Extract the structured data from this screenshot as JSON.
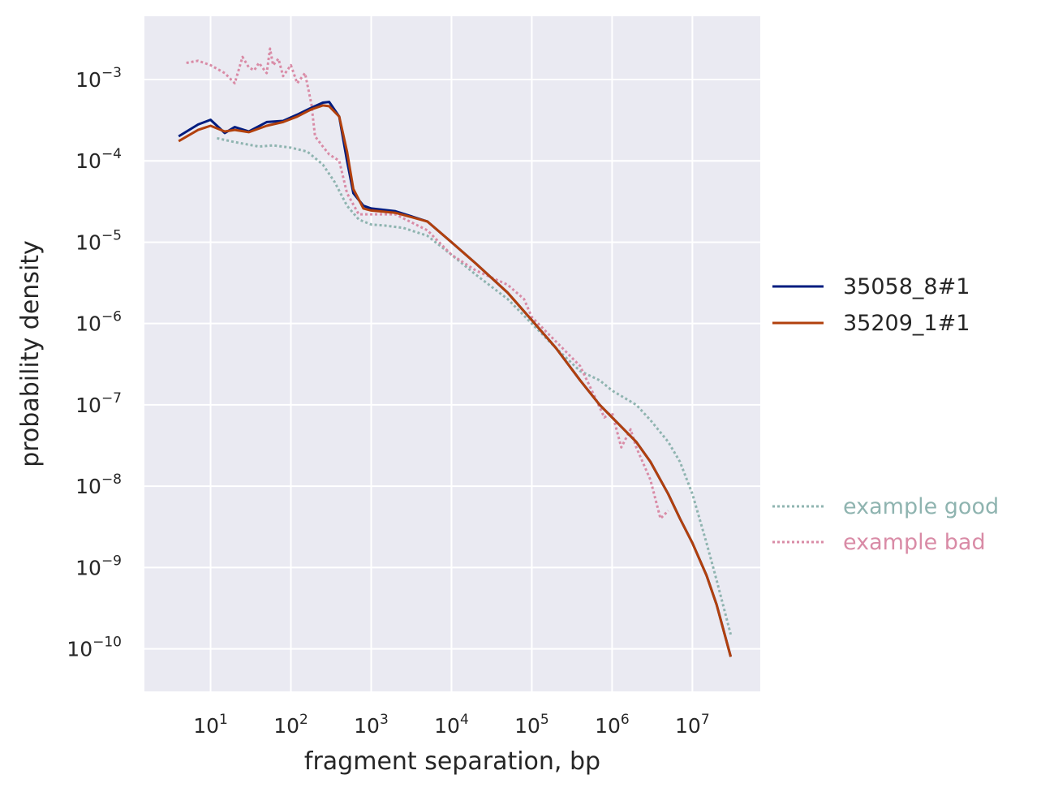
{
  "chart_data": {
    "type": "line",
    "title": "",
    "xlabel": "fragment separation, bp",
    "ylabel": "probability density",
    "xscale": "log",
    "yscale": "log",
    "xlim": [
      1.5,
      70000000
    ],
    "ylim": [
      3e-11,
      0.006
    ],
    "grid": true,
    "background": "#eaeaf2",
    "x_ticks": [
      {
        "base": "10",
        "exp": "1",
        "value": 10
      },
      {
        "base": "10",
        "exp": "2",
        "value": 100
      },
      {
        "base": "10",
        "exp": "3",
        "value": 1000
      },
      {
        "base": "10",
        "exp": "4",
        "value": 10000
      },
      {
        "base": "10",
        "exp": "5",
        "value": 100000
      },
      {
        "base": "10",
        "exp": "6",
        "value": 1000000
      },
      {
        "base": "10",
        "exp": "7",
        "value": 10000000
      }
    ],
    "y_ticks": [
      {
        "base": "10",
        "exp": "−3",
        "value": 0.001
      },
      {
        "base": "10",
        "exp": "−4",
        "value": 0.0001
      },
      {
        "base": "10",
        "exp": "−5",
        "value": 1e-05
      },
      {
        "base": "10",
        "exp": "−6",
        "value": 1e-06
      },
      {
        "base": "10",
        "exp": "−7",
        "value": 1e-07
      },
      {
        "base": "10",
        "exp": "−8",
        "value": 1e-08
      },
      {
        "base": "10",
        "exp": "−9",
        "value": 1e-09
      },
      {
        "base": "10",
        "exp": "−10",
        "value": 1e-10
      }
    ],
    "legend": {
      "placement": "right",
      "entries": [
        {
          "name": "35058_8#1",
          "color": "#001c7f",
          "style": "solid",
          "text_color": "#262626"
        },
        {
          "name": "35209_1#1",
          "color": "#b1400d",
          "style": "solid",
          "text_color": "#262626"
        }
      ],
      "reference_entries": [
        {
          "name": "example good",
          "color": "#8fb4b0",
          "style": "dotted",
          "text_color": "#8fb4b0"
        },
        {
          "name": "example bad",
          "color": "#d98ba6",
          "style": "dotted",
          "text_color": "#d98ba6"
        }
      ]
    },
    "series": [
      {
        "name": "example good",
        "color": "#8fb4b0",
        "style": "dotted",
        "points": [
          [
            12,
            0.00019
          ],
          [
            20,
            0.00017
          ],
          [
            40,
            0.00015
          ],
          [
            60,
            0.000155
          ],
          [
            100,
            0.000145
          ],
          [
            160,
            0.00013
          ],
          [
            250,
            9e-05
          ],
          [
            350,
            5.5e-05
          ],
          [
            500,
            2.8e-05
          ],
          [
            700,
            1.9e-05
          ],
          [
            1000,
            1.65e-05
          ],
          [
            1500,
            1.6e-05
          ],
          [
            2500,
            1.5e-05
          ],
          [
            5000,
            1.2e-05
          ],
          [
            10000,
            7e-06
          ],
          [
            20000,
            4e-06
          ],
          [
            50000,
            2e-06
          ],
          [
            100000,
            1e-06
          ],
          [
            200000,
            5e-07
          ],
          [
            400000,
            2.6e-07
          ],
          [
            700000,
            2e-07
          ],
          [
            1000000,
            1.5e-07
          ],
          [
            2000000,
            1e-07
          ],
          [
            3000000,
            6.5e-08
          ],
          [
            5000000,
            3.5e-08
          ],
          [
            7000000,
            2e-08
          ],
          [
            10000000,
            8e-09
          ],
          [
            15000000,
            2e-09
          ],
          [
            20000000,
            7e-10
          ],
          [
            30000000,
            1.5e-10
          ]
        ]
      },
      {
        "name": "example bad",
        "color": "#d98ba6",
        "style": "dotted",
        "points": [
          [
            5,
            0.0016
          ],
          [
            7,
            0.0017
          ],
          [
            10,
            0.0015
          ],
          [
            15,
            0.0012
          ],
          [
            20,
            0.0009
          ],
          [
            25,
            0.0019
          ],
          [
            30,
            0.0014
          ],
          [
            35,
            0.0013
          ],
          [
            40,
            0.0016
          ],
          [
            50,
            0.0012
          ],
          [
            55,
            0.0024
          ],
          [
            60,
            0.0015
          ],
          [
            70,
            0.0018
          ],
          [
            80,
            0.0011
          ],
          [
            100,
            0.0015
          ],
          [
            120,
            0.0009
          ],
          [
            150,
            0.0012
          ],
          [
            180,
            0.0005
          ],
          [
            200,
            0.0002
          ],
          [
            250,
            0.00015
          ],
          [
            300,
            0.00012
          ],
          [
            400,
            0.0001
          ],
          [
            500,
            4e-05
          ],
          [
            700,
            2.2e-05
          ],
          [
            1000,
            2.2e-05
          ],
          [
            2000,
            2.2e-05
          ],
          [
            5000,
            1.4e-05
          ],
          [
            10000,
            7e-06
          ],
          [
            20000,
            4.5e-06
          ],
          [
            50000,
            3e-06
          ],
          [
            80000,
            2e-06
          ],
          [
            100000,
            1.2e-06
          ],
          [
            200000,
            6e-07
          ],
          [
            400000,
            3e-07
          ],
          [
            600000,
            1.3e-07
          ],
          [
            800000,
            7e-08
          ],
          [
            1000000,
            8e-08
          ],
          [
            1300000,
            3e-08
          ],
          [
            1700000,
            5e-08
          ],
          [
            2000000,
            3e-08
          ],
          [
            3000000,
            1.2e-08
          ],
          [
            4000000,
            4e-09
          ],
          [
            5000000,
            5e-09
          ]
        ]
      },
      {
        "name": "35058_8#1",
        "color": "#001c7f",
        "style": "solid",
        "points": [
          [
            4,
            0.0002
          ],
          [
            7,
            0.00028
          ],
          [
            10,
            0.00032
          ],
          [
            15,
            0.00022
          ],
          [
            20,
            0.00026
          ],
          [
            30,
            0.00023
          ],
          [
            50,
            0.0003
          ],
          [
            80,
            0.00031
          ],
          [
            120,
            0.00037
          ],
          [
            180,
            0.00045
          ],
          [
            250,
            0.00052
          ],
          [
            300,
            0.00053
          ],
          [
            400,
            0.00035
          ],
          [
            500,
            0.0001
          ],
          [
            600,
            4e-05
          ],
          [
            800,
            2.8e-05
          ],
          [
            1000,
            2.6e-05
          ],
          [
            2000,
            2.4e-05
          ],
          [
            5000,
            1.8e-05
          ],
          [
            10000,
            1e-05
          ],
          [
            20000,
            5.5e-06
          ],
          [
            50000,
            2.4e-06
          ],
          [
            100000,
            1.1e-06
          ],
          [
            200000,
            5e-07
          ],
          [
            400000,
            2e-07
          ],
          [
            700000,
            1e-07
          ],
          [
            1000000,
            7e-08
          ],
          [
            2000000,
            3.5e-08
          ],
          [
            3000000,
            2e-08
          ],
          [
            5000000,
            8e-09
          ],
          [
            7000000,
            4e-09
          ],
          [
            10000000,
            2e-09
          ],
          [
            15000000,
            8e-10
          ],
          [
            20000000,
            3.5e-10
          ],
          [
            30000000,
            8e-11
          ]
        ]
      },
      {
        "name": "35209_1#1",
        "color": "#b1400d",
        "style": "solid",
        "points": [
          [
            4,
            0.000175
          ],
          [
            7,
            0.00024
          ],
          [
            10,
            0.00027
          ],
          [
            15,
            0.00023
          ],
          [
            20,
            0.00024
          ],
          [
            30,
            0.000225
          ],
          [
            50,
            0.00027
          ],
          [
            80,
            0.0003
          ],
          [
            120,
            0.00035
          ],
          [
            180,
            0.00043
          ],
          [
            250,
            0.00048
          ],
          [
            300,
            0.00047
          ],
          [
            400,
            0.00035
          ],
          [
            500,
            0.00013
          ],
          [
            600,
            4.5e-05
          ],
          [
            800,
            2.6e-05
          ],
          [
            1000,
            2.45e-05
          ],
          [
            2000,
            2.3e-05
          ],
          [
            5000,
            1.8e-05
          ],
          [
            10000,
            1e-05
          ],
          [
            20000,
            5.5e-06
          ],
          [
            50000,
            2.4e-06
          ],
          [
            100000,
            1.1e-06
          ],
          [
            200000,
            5e-07
          ],
          [
            400000,
            2e-07
          ],
          [
            700000,
            1e-07
          ],
          [
            1000000,
            7e-08
          ],
          [
            2000000,
            3.5e-08
          ],
          [
            3000000,
            2e-08
          ],
          [
            5000000,
            8e-09
          ],
          [
            7000000,
            4e-09
          ],
          [
            10000000,
            2e-09
          ],
          [
            15000000,
            8e-10
          ],
          [
            20000000,
            3.5e-10
          ],
          [
            30000000,
            8e-11
          ]
        ]
      }
    ]
  }
}
